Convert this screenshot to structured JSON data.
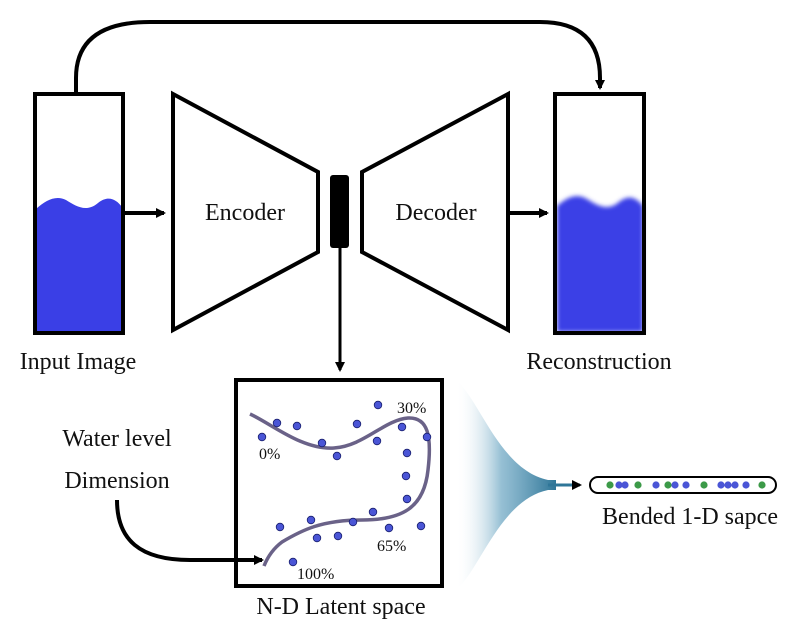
{
  "labels": {
    "input_image": "Input Image",
    "encoder": "Encoder",
    "decoder": "Decoder",
    "reconstruction": "Reconstruction",
    "water_level_line1": "Water level",
    "water_level_line2": "Dimension",
    "latent_space": "N-D Latent space",
    "bended_space": "Bended 1-D sapce",
    "pct_0": "0%",
    "pct_30": "30%",
    "pct_65": "65%",
    "pct_100": "100%"
  },
  "colors": {
    "water": "#3a3fe6",
    "point_blue": "#4a55d6",
    "point_green": "#3c9a48",
    "curve": "#6a6288",
    "funnel": "#3f86a8",
    "outline": "#000000"
  }
}
